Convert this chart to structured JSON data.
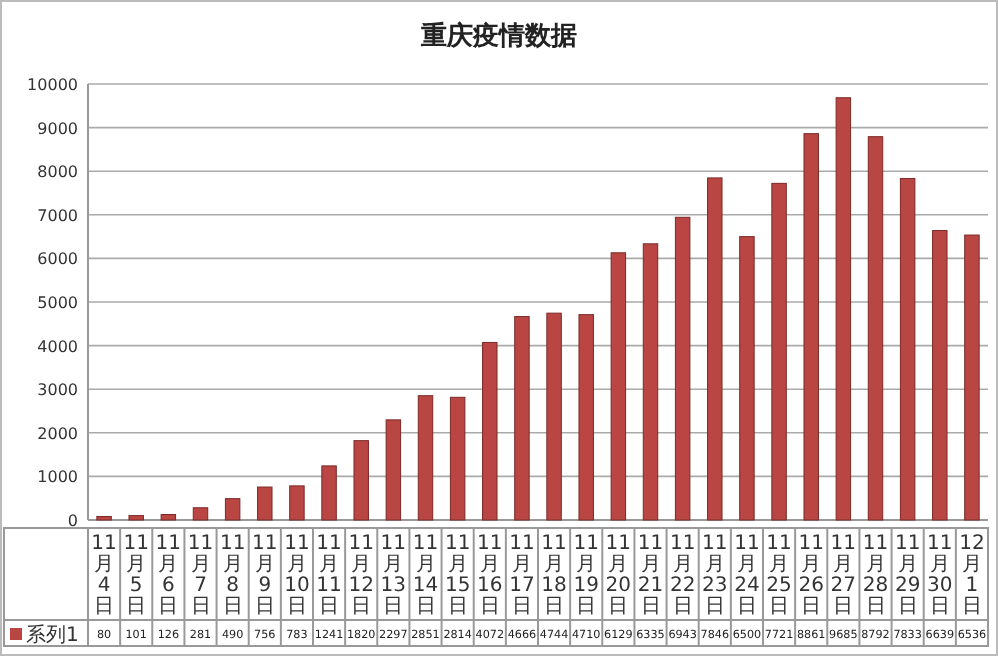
{
  "chart_data": {
    "type": "bar",
    "title": "重庆疫情数据",
    "categories": [
      "11月4日",
      "11月5日",
      "11月6日",
      "11月7日",
      "11月8日",
      "11月9日",
      "11月10日",
      "11月11日",
      "11月12日",
      "11月13日",
      "11月14日",
      "11月15日",
      "11月16日",
      "11月17日",
      "11月18日",
      "11月19日",
      "11月20日",
      "11月21日",
      "11月22日",
      "11月23日",
      "11月24日",
      "11月25日",
      "11月26日",
      "11月27日",
      "11月28日",
      "11月29日",
      "11月30日",
      "12月1日"
    ],
    "series": [
      {
        "name": "系列1",
        "color": "#b94643",
        "values": [
          80,
          101,
          126,
          281,
          490,
          756,
          783,
          1241,
          1820,
          2297,
          2851,
          2814,
          4072,
          4666,
          4744,
          4710,
          6129,
          6335,
          6943,
          7846,
          6500,
          7721,
          8861,
          9685,
          8792,
          7833,
          6639,
          6536
        ]
      }
    ],
    "ylim": [
      0,
      10000
    ],
    "yticks": [
      0,
      1000,
      2000,
      3000,
      4000,
      5000,
      6000,
      7000,
      8000,
      9000,
      10000
    ],
    "grid": "y",
    "legend": "bottom",
    "data_labels": true
  }
}
